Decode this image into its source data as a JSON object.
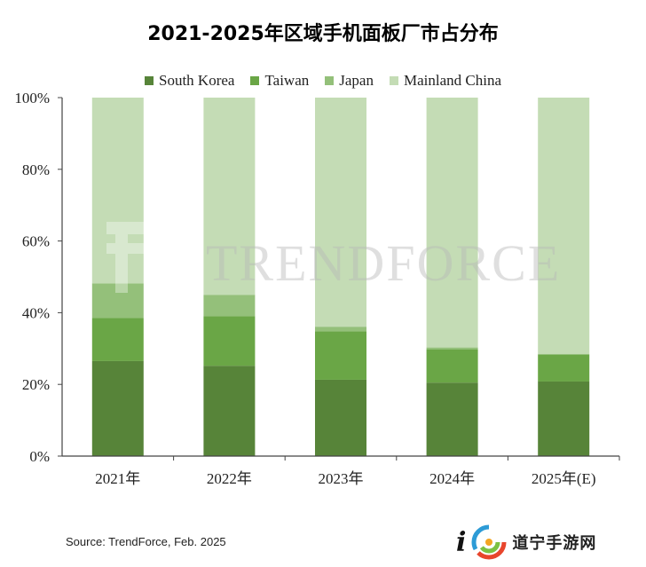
{
  "chart_data": {
    "type": "bar",
    "stacked": true,
    "title": "2021-2025年区域手机面板厂市占分布",
    "categories": [
      "2021年",
      "2022年",
      "2023年",
      "2024年",
      "2025年(E)"
    ],
    "series": [
      {
        "name": "South Korea",
        "color": "#578439",
        "values": [
          26.5,
          25.2,
          21.3,
          20.5,
          20.8
        ]
      },
      {
        "name": "Taiwan",
        "color": "#6aa646",
        "values": [
          12.0,
          13.8,
          13.5,
          9.3,
          7.6
        ]
      },
      {
        "name": "Japan",
        "color": "#94c07a",
        "values": [
          9.7,
          6.0,
          1.3,
          0.5,
          0.0
        ]
      },
      {
        "name": "Mainland China",
        "color": "#c4dcb5",
        "values": [
          51.8,
          55.0,
          63.9,
          69.7,
          71.6
        ]
      }
    ],
    "ylim": [
      0,
      100
    ],
    "yticks": [
      "0%",
      "20%",
      "40%",
      "60%",
      "80%",
      "100%"
    ],
    "legend_position": "top",
    "grid": false,
    "watermark": "TRENDFORCE"
  },
  "source": "Source: TrendForce, Feb. 2025",
  "site_logo": {
    "mark": "i",
    "name": "道宁手游网",
    "swirl_icon": "swirl-logo-icon"
  }
}
